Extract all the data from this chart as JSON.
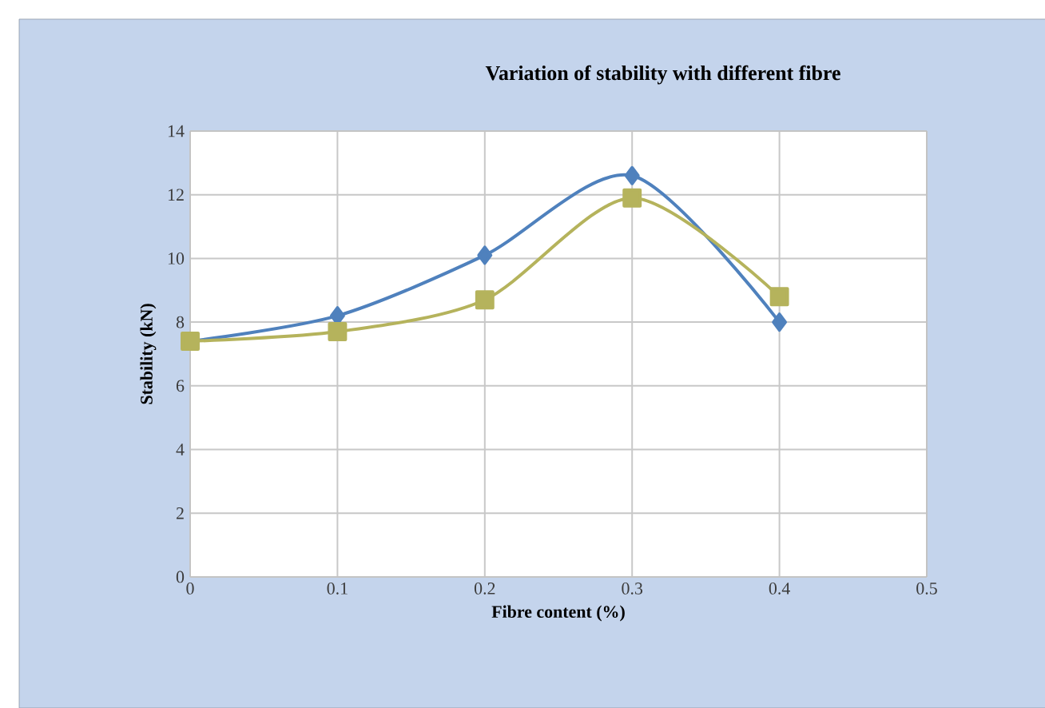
{
  "chart_data": {
    "type": "line",
    "title": "Variation of stability with different fibre",
    "xlabel": "Fibre content (%)",
    "ylabel": "Stability (kN)",
    "x": [
      0,
      0.1,
      0.2,
      0.3,
      0.4
    ],
    "series": [
      {
        "color": "#4f81bd",
        "marker": "diamond",
        "values": [
          7.4,
          8.2,
          10.1,
          12.6,
          8.0
        ]
      },
      {
        "color": "#b5b35c",
        "marker": "square",
        "values": [
          7.4,
          7.7,
          8.7,
          11.9,
          8.8
        ]
      }
    ],
    "xlim": [
      0,
      0.5
    ],
    "xticks": [
      0,
      0.1,
      0.2,
      0.3,
      0.4,
      0.5
    ],
    "ylim": [
      0,
      14
    ],
    "yticks": [
      0,
      2,
      4,
      6,
      8,
      10,
      12,
      14
    ],
    "grid": true
  }
}
